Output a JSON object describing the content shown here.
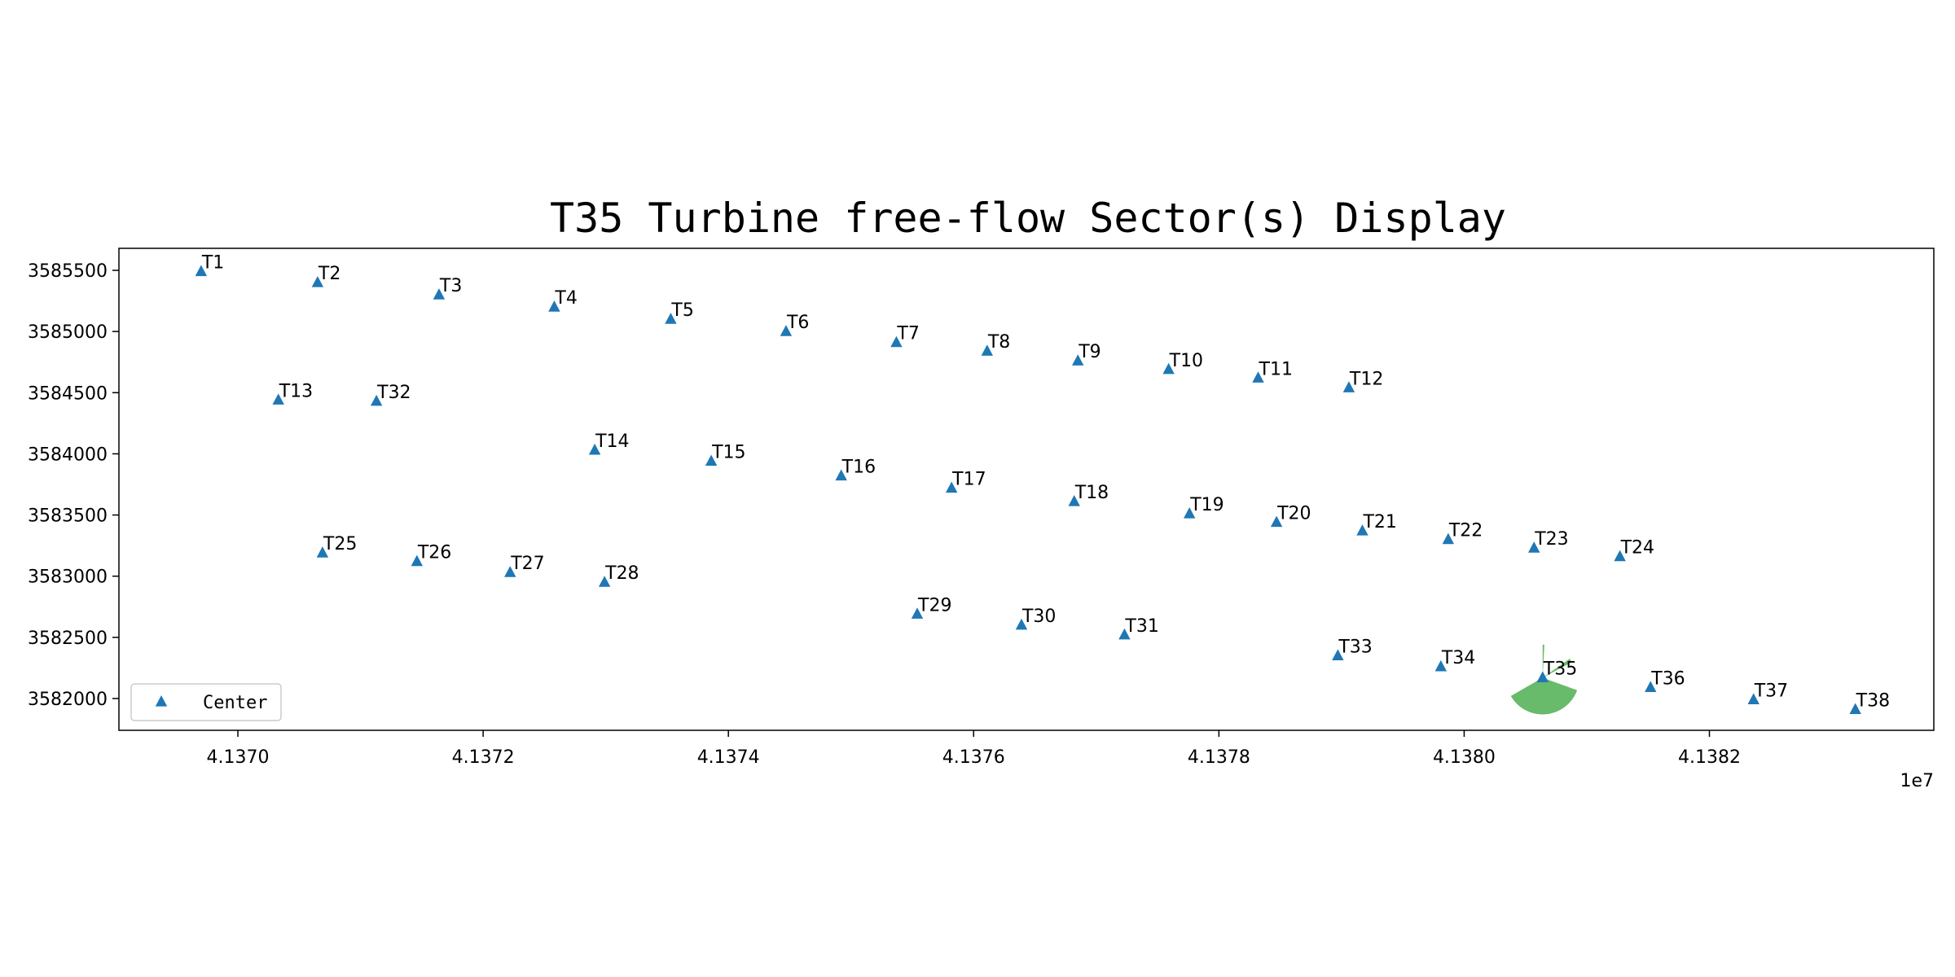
{
  "chart_data": {
    "type": "scatter",
    "title": "T35 Turbine free-flow Sector(s) Display",
    "xlabel": "",
    "ylabel": "",
    "x_offset_label": "1e7",
    "xlim": [
      41369030,
      41383830
    ],
    "ylim": [
      3581740,
      3585680
    ],
    "x_ticks": [
      {
        "value": 41370000,
        "label": "4.1370"
      },
      {
        "value": 41372000,
        "label": "4.1372"
      },
      {
        "value": 41374000,
        "label": "4.1374"
      },
      {
        "value": 41376000,
        "label": "4.1376"
      },
      {
        "value": 41378000,
        "label": "4.1378"
      },
      {
        "value": 41380000,
        "label": "4.1380"
      },
      {
        "value": 41382000,
        "label": "4.1382"
      }
    ],
    "y_ticks": [
      {
        "value": 3582000,
        "label": "3582000"
      },
      {
        "value": 3582500,
        "label": "3582500"
      },
      {
        "value": 3583000,
        "label": "3583000"
      },
      {
        "value": 3583500,
        "label": "3583500"
      },
      {
        "value": 3584000,
        "label": "3584000"
      },
      {
        "value": 3584500,
        "label": "3584500"
      },
      {
        "value": 3585000,
        "label": "3585000"
      },
      {
        "value": 3585500,
        "label": "3585500"
      }
    ],
    "grid": false,
    "legend": {
      "placement": "lower-left",
      "entries": [
        {
          "label": "Center",
          "color": "#1f77b4",
          "marker": "triangle"
        }
      ]
    },
    "series": [
      {
        "name": "Center",
        "color": "#1f77b4",
        "marker": "triangle",
        "points": [
          {
            "label": "T1",
            "x": 41369700,
            "y": 3585490
          },
          {
            "label": "T2",
            "x": 41370650,
            "y": 3585400
          },
          {
            "label": "T3",
            "x": 41371640,
            "y": 3585300
          },
          {
            "label": "T4",
            "x": 41372580,
            "y": 3585200
          },
          {
            "label": "T5",
            "x": 41373530,
            "y": 3585100
          },
          {
            "label": "T6",
            "x": 41374470,
            "y": 3585000
          },
          {
            "label": "T7",
            "x": 41375370,
            "y": 3584910
          },
          {
            "label": "T8",
            "x": 41376110,
            "y": 3584840
          },
          {
            "label": "T9",
            "x": 41376850,
            "y": 3584760
          },
          {
            "label": "T10",
            "x": 41377590,
            "y": 3584690
          },
          {
            "label": "T11",
            "x": 41378320,
            "y": 3584620
          },
          {
            "label": "T12",
            "x": 41379060,
            "y": 3584540
          },
          {
            "label": "T13",
            "x": 41370330,
            "y": 3584440
          },
          {
            "label": "T32",
            "x": 41371130,
            "y": 3584430
          },
          {
            "label": "T14",
            "x": 41372910,
            "y": 3584030
          },
          {
            "label": "T15",
            "x": 41373860,
            "y": 3583940
          },
          {
            "label": "T16",
            "x": 41374920,
            "y": 3583820
          },
          {
            "label": "T17",
            "x": 41375820,
            "y": 3583720
          },
          {
            "label": "T18",
            "x": 41376820,
            "y": 3583610
          },
          {
            "label": "T19",
            "x": 41377760,
            "y": 3583510
          },
          {
            "label": "T20",
            "x": 41378470,
            "y": 3583440
          },
          {
            "label": "T21",
            "x": 41379170,
            "y": 3583370
          },
          {
            "label": "T22",
            "x": 41379870,
            "y": 3583300
          },
          {
            "label": "T23",
            "x": 41380570,
            "y": 3583230
          },
          {
            "label": "T24",
            "x": 41381270,
            "y": 3583160
          },
          {
            "label": "T25",
            "x": 41370690,
            "y": 3583190
          },
          {
            "label": "T26",
            "x": 41371460,
            "y": 3583120
          },
          {
            "label": "T27",
            "x": 41372220,
            "y": 3583030
          },
          {
            "label": "T28",
            "x": 41372990,
            "y": 3582950
          },
          {
            "label": "T29",
            "x": 41375540,
            "y": 3582690
          },
          {
            "label": "T30",
            "x": 41376390,
            "y": 3582600
          },
          {
            "label": "T31",
            "x": 41377230,
            "y": 3582520
          },
          {
            "label": "T33",
            "x": 41378970,
            "y": 3582350
          },
          {
            "label": "T34",
            "x": 41379810,
            "y": 3582260
          },
          {
            "label": "T35",
            "x": 41380640,
            "y": 3582170
          },
          {
            "label": "T36",
            "x": 41381520,
            "y": 3582090
          },
          {
            "label": "T37",
            "x": 41382360,
            "y": 3581990
          },
          {
            "label": "T38",
            "x": 41383190,
            "y": 3581910
          }
        ]
      }
    ],
    "sectors": [
      {
        "center_label": "T35",
        "color": "#4caf50",
        "alpha": 0.85,
        "radius": 300,
        "start_deg": 110,
        "end_deg": 240
      },
      {
        "center_label": "T35",
        "color": "#4caf50",
        "alpha": 0.85,
        "radius": 270,
        "start_deg": 0,
        "end_deg": 3
      },
      {
        "center_label": "T35",
        "color": "#4caf50",
        "alpha": 0.85,
        "radius": 270,
        "start_deg": 55,
        "end_deg": 62
      }
    ]
  }
}
